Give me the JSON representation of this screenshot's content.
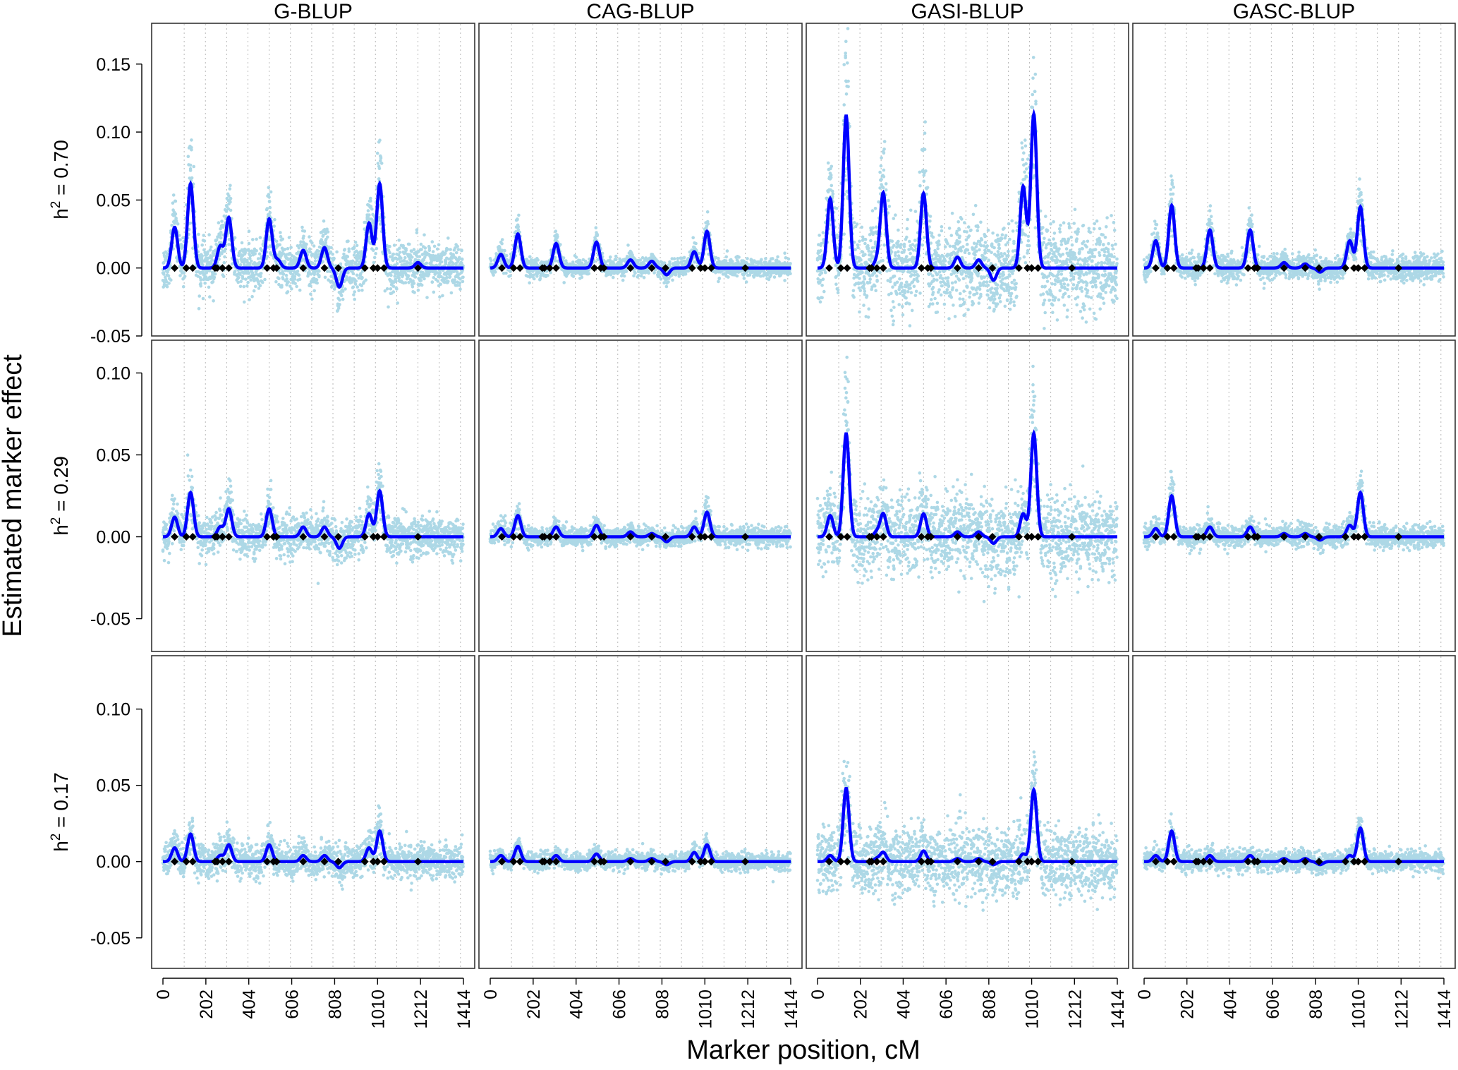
{
  "chart_data": {
    "type": "scatter",
    "layout": "small-multiples grid, 3 rows x 4 columns",
    "xlabel": "Marker position, cM",
    "ylabel": "Estimated marker effect",
    "x_ticks": [
      0,
      202,
      404,
      606,
      808,
      1010,
      1212,
      1414
    ],
    "x_range": [
      0,
      1414
    ],
    "x_gridlines": [
      100,
      200,
      300,
      400,
      500,
      600,
      700,
      800,
      900,
      1000,
      1100,
      1200,
      1300,
      1400
    ],
    "grid": "vertical dotted lines",
    "columns": [
      "G-BLUP",
      "CAG-BLUP",
      "GASI-BLUP",
      "GASC-BLUP"
    ],
    "colors": {
      "scatter_points": "#add8e6",
      "mean_curve": "#0000ff",
      "qtl_markers": "#000000"
    },
    "qtl_positions": [
      55,
      110,
      140,
      245,
      255,
      280,
      310,
      490,
      520,
      535,
      660,
      760,
      825,
      950,
      990,
      1010,
      1040,
      1200
    ],
    "rows": [
      {
        "label": "h",
        "label_sup": "2",
        "label_rest": " = 0.70",
        "h2": 0.7,
        "ylim": [
          -0.05,
          0.18
        ],
        "y_ticks": [
          -0.05,
          0.0,
          0.05,
          0.1,
          0.15
        ],
        "y_tick_labels": [
          "-0.05",
          "0.00",
          "0.05",
          "0.10",
          "0.15"
        ],
        "panels": [
          {
            "method": "G-BLUP",
            "spread": 0.016,
            "peaks": [
              [
                55,
                0.03
              ],
              [
                130,
                0.062
              ],
              [
                270,
                0.016
              ],
              [
                310,
                0.037
              ],
              [
                500,
                0.036
              ],
              [
                540,
                0.006
              ],
              [
                660,
                0.013
              ],
              [
                760,
                0.015
              ],
              [
                830,
                -0.014
              ],
              [
                970,
                0.033
              ],
              [
                1020,
                0.062
              ],
              [
                1200,
                0.004
              ]
            ]
          },
          {
            "method": "CAG-BLUP",
            "spread": 0.006,
            "peaks": [
              [
                50,
                0.01
              ],
              [
                130,
                0.025
              ],
              [
                310,
                0.018
              ],
              [
                500,
                0.019
              ],
              [
                660,
                0.006
              ],
              [
                760,
                0.005
              ],
              [
                830,
                -0.005
              ],
              [
                960,
                0.012
              ],
              [
                1020,
                0.027
              ]
            ]
          },
          {
            "method": "GASI-BLUP",
            "spread": 0.028,
            "peaks": [
              [
                60,
                0.051
              ],
              [
                135,
                0.112
              ],
              [
                280,
                0.005
              ],
              [
                310,
                0.055
              ],
              [
                500,
                0.055
              ],
              [
                660,
                0.008
              ],
              [
                760,
                0.006
              ],
              [
                830,
                -0.009
              ],
              [
                970,
                0.06
              ],
              [
                1020,
                0.113
              ]
            ]
          },
          {
            "method": "GASC-BLUP",
            "spread": 0.008,
            "peaks": [
              [
                55,
                0.02
              ],
              [
                130,
                0.046
              ],
              [
                310,
                0.028
              ],
              [
                500,
                0.028
              ],
              [
                660,
                0.004
              ],
              [
                760,
                0.003
              ],
              [
                830,
                -0.003
              ],
              [
                970,
                0.02
              ],
              [
                1020,
                0.045
              ]
            ]
          }
        ]
      },
      {
        "label": "h",
        "label_sup": "2",
        "label_rest": " = 0.29",
        "h2": 0.29,
        "ylim": [
          -0.07,
          0.12
        ],
        "y_ticks": [
          -0.05,
          0.0,
          0.05,
          0.1
        ],
        "y_tick_labels": [
          "-0.05",
          "0.00",
          "0.05",
          "0.10"
        ],
        "panels": [
          {
            "method": "G-BLUP",
            "spread": 0.011,
            "peaks": [
              [
                55,
                0.012
              ],
              [
                130,
                0.027
              ],
              [
                270,
                0.006
              ],
              [
                310,
                0.017
              ],
              [
                500,
                0.017
              ],
              [
                660,
                0.006
              ],
              [
                760,
                0.006
              ],
              [
                830,
                -0.007
              ],
              [
                970,
                0.014
              ],
              [
                1020,
                0.028
              ]
            ]
          },
          {
            "method": "CAG-BLUP",
            "spread": 0.005,
            "peaks": [
              [
                50,
                0.005
              ],
              [
                130,
                0.013
              ],
              [
                310,
                0.006
              ],
              [
                500,
                0.007
              ],
              [
                660,
                0.003
              ],
              [
                760,
                0.002
              ],
              [
                830,
                -0.003
              ],
              [
                960,
                0.006
              ],
              [
                1020,
                0.015
              ]
            ]
          },
          {
            "method": "GASI-BLUP",
            "spread": 0.022,
            "peaks": [
              [
                60,
                0.013
              ],
              [
                135,
                0.063
              ],
              [
                280,
                0.003
              ],
              [
                310,
                0.014
              ],
              [
                500,
                0.014
              ],
              [
                660,
                0.003
              ],
              [
                760,
                0.003
              ],
              [
                830,
                -0.004
              ],
              [
                970,
                0.014
              ],
              [
                1020,
                0.063
              ]
            ]
          },
          {
            "method": "GASC-BLUP",
            "spread": 0.006,
            "peaks": [
              [
                55,
                0.005
              ],
              [
                130,
                0.025
              ],
              [
                310,
                0.006
              ],
              [
                500,
                0.006
              ],
              [
                660,
                0.002
              ],
              [
                760,
                0.002
              ],
              [
                830,
                -0.002
              ],
              [
                970,
                0.007
              ],
              [
                1020,
                0.027
              ]
            ]
          }
        ]
      },
      {
        "label": "h",
        "label_sup": "2",
        "label_rest": " = 0.17",
        "h2": 0.17,
        "ylim": [
          -0.07,
          0.135
        ],
        "y_ticks": [
          -0.05,
          0.0,
          0.05,
          0.1
        ],
        "y_tick_labels": [
          "-0.05",
          "0.00",
          "0.05",
          "0.10"
        ],
        "panels": [
          {
            "method": "G-BLUP",
            "spread": 0.01,
            "peaks": [
              [
                55,
                0.009
              ],
              [
                130,
                0.018
              ],
              [
                270,
                0.004
              ],
              [
                310,
                0.011
              ],
              [
                500,
                0.011
              ],
              [
                660,
                0.004
              ],
              [
                760,
                0.004
              ],
              [
                830,
                -0.004
              ],
              [
                970,
                0.009
              ],
              [
                1020,
                0.02
              ]
            ]
          },
          {
            "method": "CAG-BLUP",
            "spread": 0.005,
            "peaks": [
              [
                50,
                0.004
              ],
              [
                130,
                0.01
              ],
              [
                310,
                0.004
              ],
              [
                500,
                0.005
              ],
              [
                660,
                0.002
              ],
              [
                760,
                0.002
              ],
              [
                830,
                -0.002
              ],
              [
                960,
                0.006
              ],
              [
                1020,
                0.011
              ]
            ]
          },
          {
            "method": "GASI-BLUP",
            "spread": 0.02,
            "peaks": [
              [
                60,
                0.004
              ],
              [
                135,
                0.048
              ],
              [
                280,
                0.002
              ],
              [
                310,
                0.006
              ],
              [
                500,
                0.007
              ],
              [
                660,
                0.002
              ],
              [
                760,
                0.002
              ],
              [
                830,
                -0.002
              ],
              [
                970,
                0.005
              ],
              [
                1020,
                0.047
              ]
            ]
          },
          {
            "method": "GASC-BLUP",
            "spread": 0.006,
            "peaks": [
              [
                55,
                0.004
              ],
              [
                130,
                0.02
              ],
              [
                310,
                0.004
              ],
              [
                500,
                0.004
              ],
              [
                660,
                0.002
              ],
              [
                760,
                0.002
              ],
              [
                830,
                -0.002
              ],
              [
                970,
                0.004
              ],
              [
                1020,
                0.022
              ]
            ]
          }
        ]
      }
    ]
  }
}
